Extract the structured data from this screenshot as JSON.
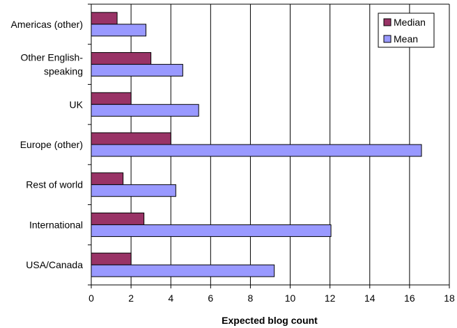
{
  "chart_data": {
    "type": "bar",
    "orientation": "horizontal",
    "categories": [
      [
        "Americas (other)"
      ],
      [
        "Other English-",
        "speaking"
      ],
      [
        "UK"
      ],
      [
        "Europe (other)"
      ],
      [
        "Rest of world"
      ],
      [
        "International"
      ],
      [
        "USA/Canada"
      ]
    ],
    "series": [
      {
        "name": "Median",
        "color": "#993366",
        "values": [
          1.3,
          3.0,
          2.0,
          4.0,
          1.6,
          2.65,
          2.0
        ]
      },
      {
        "name": "Mean",
        "color": "#9999ff",
        "values": [
          2.75,
          4.6,
          5.4,
          16.6,
          4.25,
          12.05,
          9.2
        ]
      }
    ],
    "xlabel": "Expected blog count",
    "ylabel": "",
    "xlim": [
      0,
      18
    ],
    "xticks": [
      "0",
      "2",
      "4",
      "6",
      "8",
      "10",
      "12",
      "14",
      "16",
      "18"
    ],
    "grid": "vertical",
    "legend_position": "top-right"
  }
}
